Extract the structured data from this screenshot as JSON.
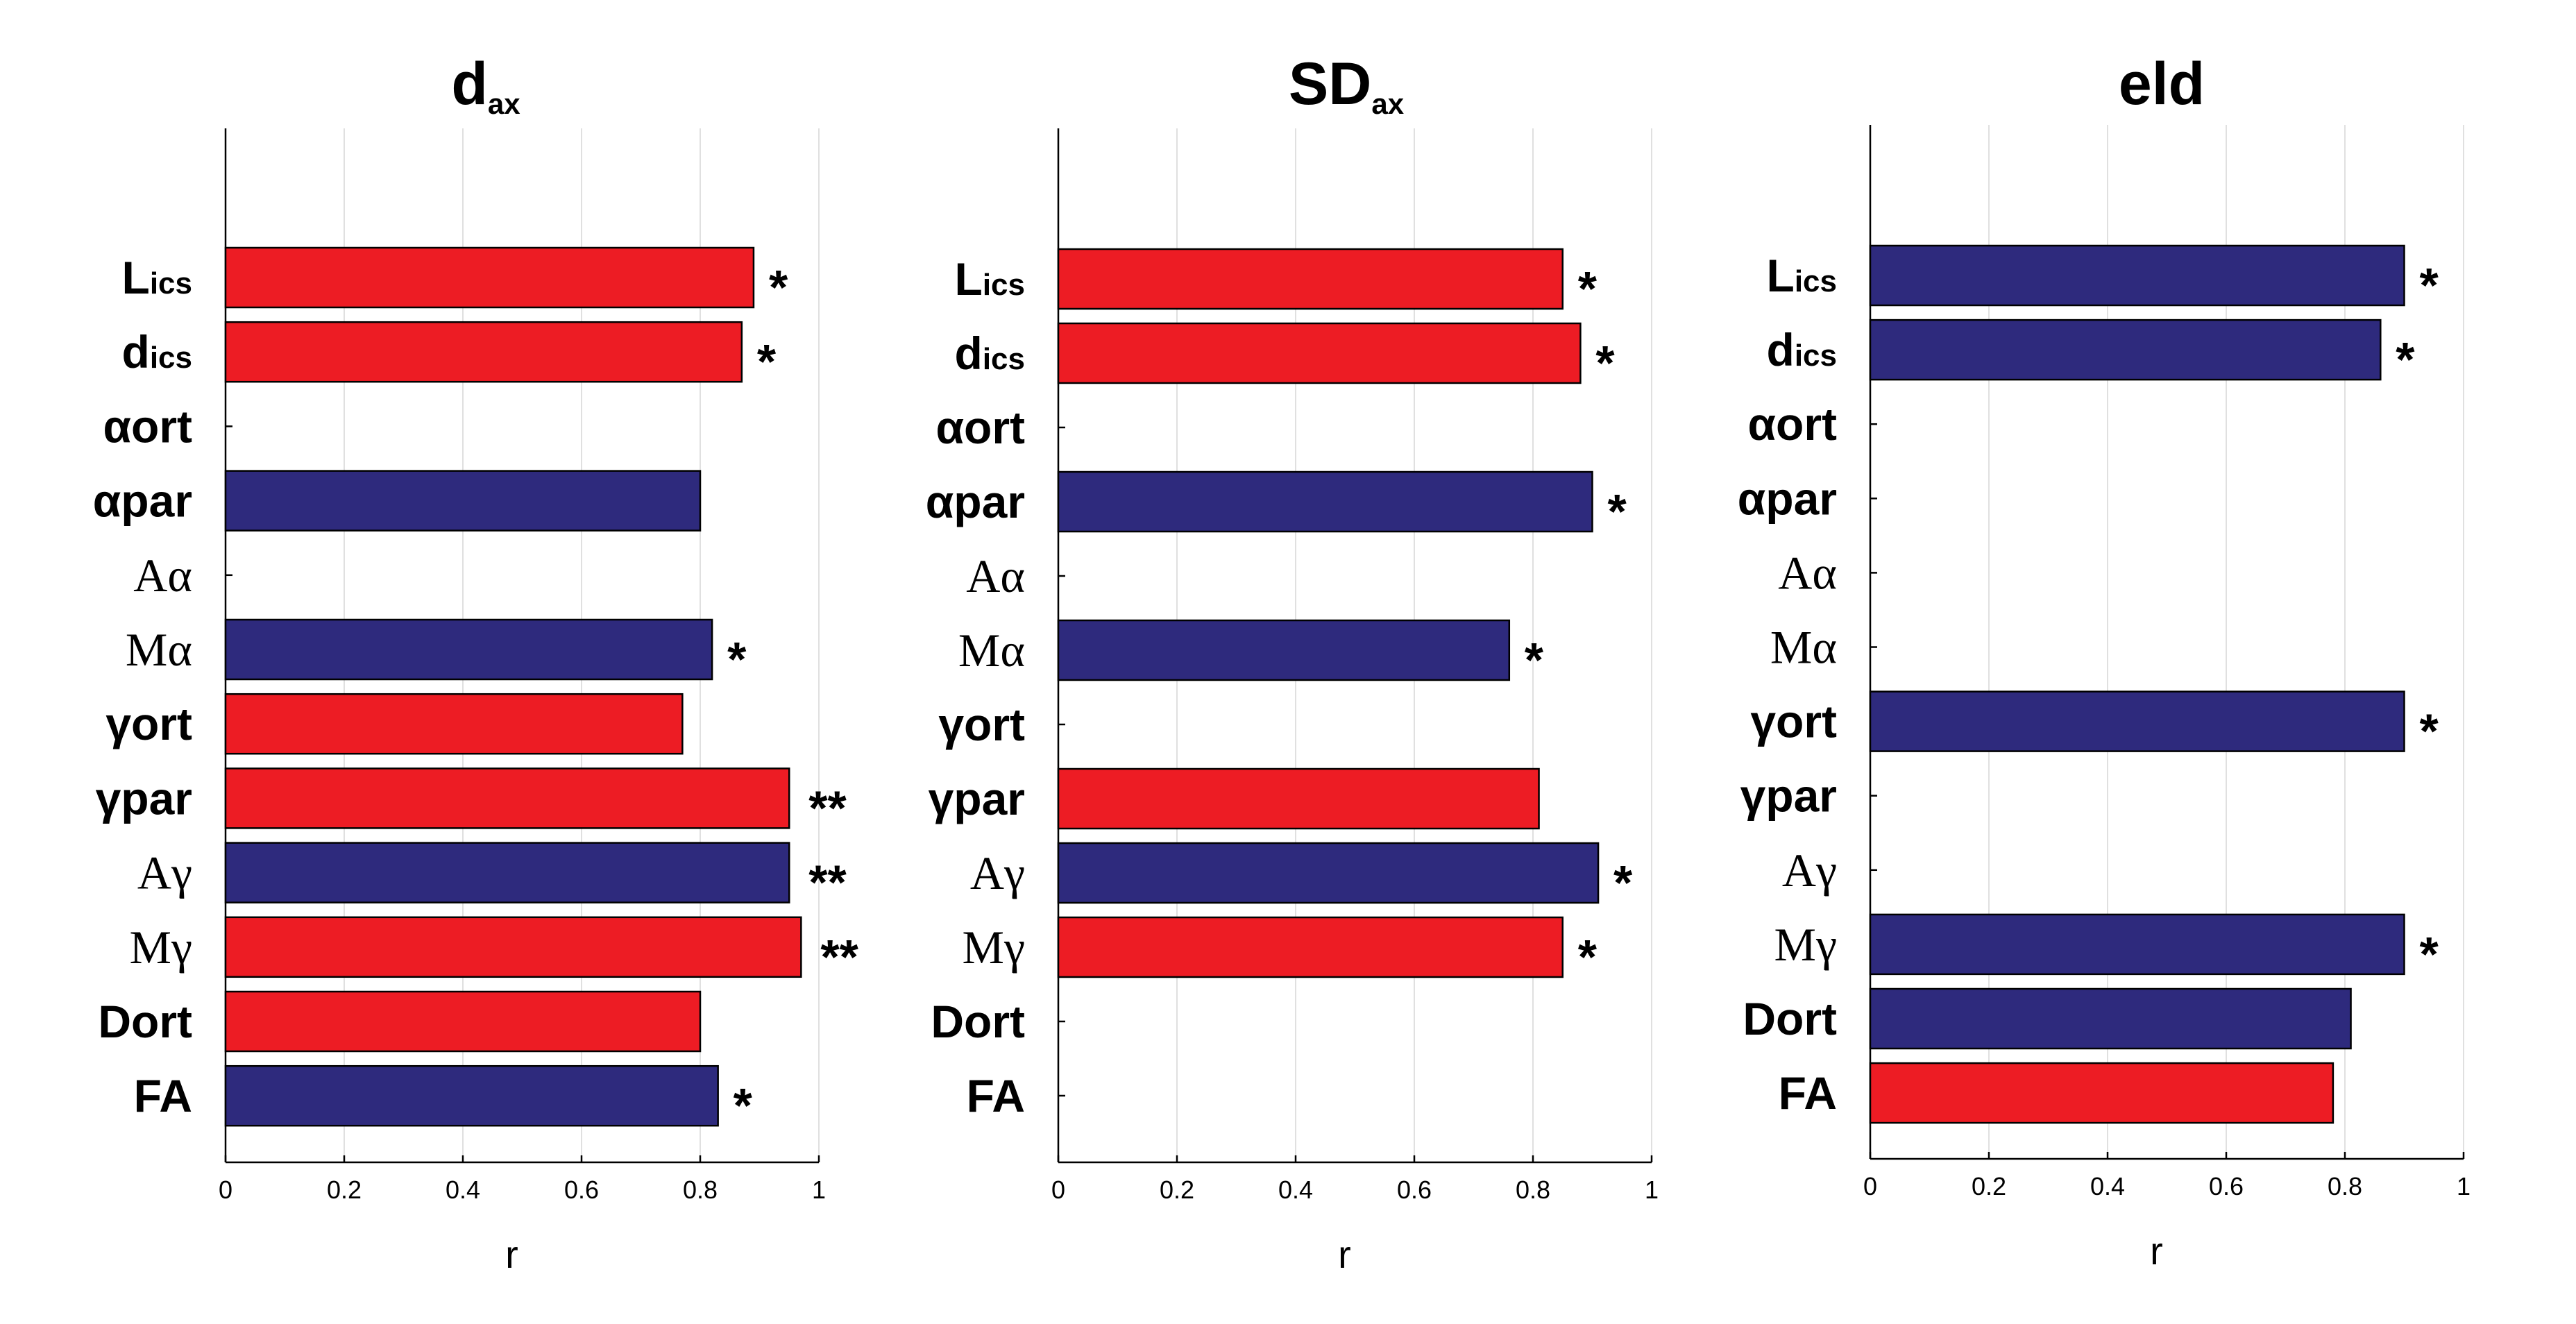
{
  "colors": {
    "red": "#ED1C24",
    "blue": "#2E2A7D"
  },
  "chart_data": [
    {
      "type": "bar",
      "orientation": "horizontal",
      "title": "d",
      "title_subscript": "ax",
      "xlabel": "r",
      "xlim": [
        0,
        1
      ],
      "xticks": [
        "0",
        "0.2",
        "0.4",
        "0.6",
        "0.8",
        "1"
      ],
      "categories": [
        {
          "main": "L",
          "sub": "ics",
          "serif": false
        },
        {
          "main": "d",
          "sub": "ics",
          "serif": false
        },
        {
          "main": "αort",
          "sub": "",
          "serif": false
        },
        {
          "main": "αpar",
          "sub": "",
          "serif": false
        },
        {
          "main": "Aα",
          "sub": "",
          "serif": true
        },
        {
          "main": "Mα",
          "sub": "",
          "serif": true
        },
        {
          "main": "γort",
          "sub": "",
          "serif": false
        },
        {
          "main": "γpar",
          "sub": "",
          "serif": false
        },
        {
          "main": "Aγ",
          "sub": "",
          "serif": true
        },
        {
          "main": "Mγ",
          "sub": "",
          "serif": true
        },
        {
          "main": "Dort",
          "sub": "",
          "serif": false
        },
        {
          "main": "FA",
          "sub": "",
          "serif": false
        }
      ],
      "values": [
        0.89,
        0.87,
        null,
        0.8,
        null,
        0.82,
        0.77,
        0.95,
        0.95,
        0.97,
        0.8,
        0.83
      ],
      "colors": [
        "red",
        "red",
        null,
        "blue",
        null,
        "blue",
        "red",
        "red",
        "blue",
        "red",
        "red",
        "blue"
      ],
      "significance": [
        "*",
        "*",
        "",
        "",
        "",
        "*",
        "",
        "**",
        "**",
        "**",
        "",
        "*"
      ]
    },
    {
      "type": "bar",
      "orientation": "horizontal",
      "title": "SD",
      "title_subscript": "ax",
      "xlabel": "r",
      "xlim": [
        0,
        1
      ],
      "xticks": [
        "0",
        "0.2",
        "0.4",
        "0.6",
        "0.8",
        "1"
      ],
      "categories": [
        {
          "main": "L",
          "sub": "ics",
          "serif": false
        },
        {
          "main": "d",
          "sub": "ics",
          "serif": false
        },
        {
          "main": "αort",
          "sub": "",
          "serif": false
        },
        {
          "main": "αpar",
          "sub": "",
          "serif": false
        },
        {
          "main": "Aα",
          "sub": "",
          "serif": true
        },
        {
          "main": "Mα",
          "sub": "",
          "serif": true
        },
        {
          "main": "γort",
          "sub": "",
          "serif": false
        },
        {
          "main": "γpar",
          "sub": "",
          "serif": false
        },
        {
          "main": "Aγ",
          "sub": "",
          "serif": true
        },
        {
          "main": "Mγ",
          "sub": "",
          "serif": true
        },
        {
          "main": "Dort",
          "sub": "",
          "serif": false
        },
        {
          "main": "FA",
          "sub": "",
          "serif": false
        }
      ],
      "values": [
        0.85,
        0.88,
        null,
        0.9,
        null,
        0.76,
        null,
        0.81,
        0.91,
        0.85,
        null,
        null
      ],
      "colors": [
        "red",
        "red",
        null,
        "blue",
        null,
        "blue",
        null,
        "red",
        "blue",
        "red",
        null,
        null
      ],
      "significance": [
        "*",
        "*",
        "",
        "*",
        "",
        "*",
        "",
        "",
        "*",
        "*",
        "",
        ""
      ]
    },
    {
      "type": "bar",
      "orientation": "horizontal",
      "title": "eld",
      "title_subscript": "",
      "xlabel": "r",
      "xlim": [
        0,
        1
      ],
      "xticks": [
        "0",
        "0.2",
        "0.4",
        "0.6",
        "0.8",
        "1"
      ],
      "categories": [
        {
          "main": "L",
          "sub": "ics",
          "serif": false
        },
        {
          "main": "d",
          "sub": "ics",
          "serif": false
        },
        {
          "main": "αort",
          "sub": "",
          "serif": false
        },
        {
          "main": "αpar",
          "sub": "",
          "serif": false
        },
        {
          "main": "Aα",
          "sub": "",
          "serif": true
        },
        {
          "main": "Mα",
          "sub": "",
          "serif": true
        },
        {
          "main": "γort",
          "sub": "",
          "serif": false
        },
        {
          "main": "γpar",
          "sub": "",
          "serif": false
        },
        {
          "main": "Aγ",
          "sub": "",
          "serif": true
        },
        {
          "main": "Mγ",
          "sub": "",
          "serif": true
        },
        {
          "main": "Dort",
          "sub": "",
          "serif": false
        },
        {
          "main": "FA",
          "sub": "",
          "serif": false
        }
      ],
      "values": [
        0.9,
        0.86,
        null,
        null,
        null,
        null,
        0.9,
        null,
        null,
        0.9,
        0.81,
        0.78
      ],
      "colors": [
        "blue",
        "blue",
        null,
        null,
        null,
        null,
        "blue",
        null,
        null,
        "blue",
        "blue",
        "red"
      ],
      "significance": [
        "*",
        "*",
        "",
        "",
        "",
        "",
        "*",
        "",
        "",
        "*",
        "",
        ""
      ]
    }
  ]
}
